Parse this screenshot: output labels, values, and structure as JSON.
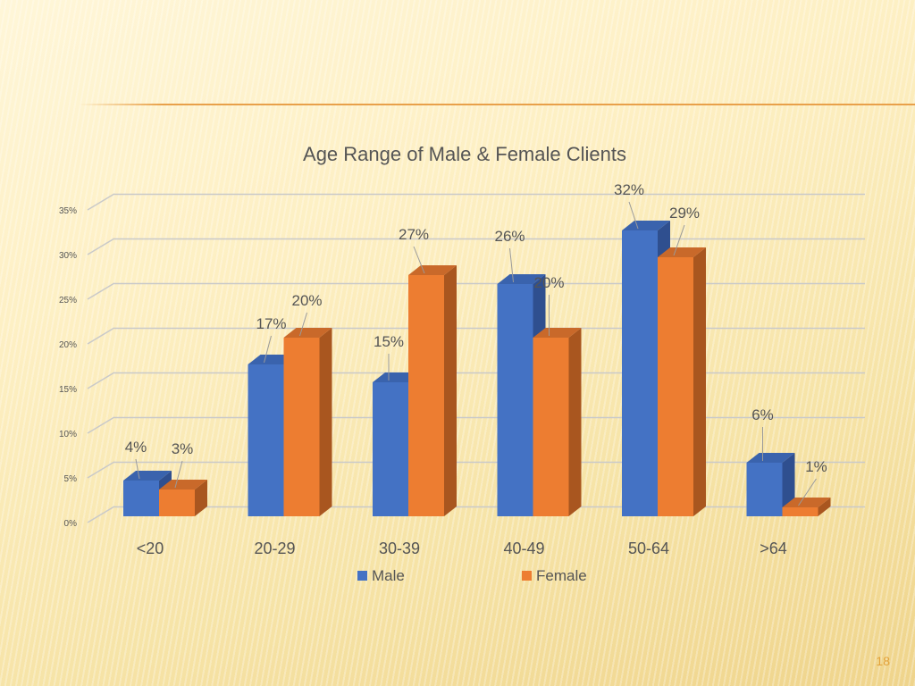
{
  "slide": {
    "page_number": "18"
  },
  "chart_data": {
    "type": "bar",
    "title": "Age Range of Male & Female Clients",
    "categories": [
      "<20",
      "20-29",
      "30-39",
      "40-49",
      "50-64",
      ">64"
    ],
    "series": [
      {
        "name": "Male",
        "values": [
          4,
          17,
          15,
          26,
          32,
          6
        ],
        "labels": [
          "4%",
          "17%",
          "15%",
          "26%",
          "32%",
          "6%"
        ],
        "color": "#4472c4",
        "side_color": "#2f4f8f",
        "top_color": "#3a63ad"
      },
      {
        "name": "Female",
        "values": [
          3,
          20,
          27,
          20,
          29,
          1
        ],
        "labels": [
          "3%",
          "20%",
          "27%",
          "20%",
          "29%",
          "1%"
        ],
        "color": "#ed7d31",
        "side_color": "#a9561f",
        "top_color": "#c9692a"
      }
    ],
    "ylim": [
      0,
      35
    ],
    "yticks": [
      "0%",
      "5%",
      "10%",
      "15%",
      "20%",
      "25%",
      "30%",
      "35%"
    ],
    "grid": true,
    "legend": "bottom"
  }
}
